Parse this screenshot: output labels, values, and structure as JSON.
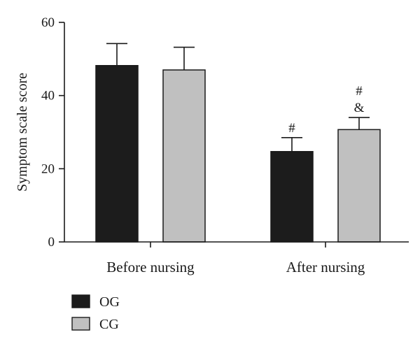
{
  "chart_data": {
    "type": "bar",
    "title": "",
    "xlabel": "",
    "ylabel": "Symptom scale score",
    "ylim": [
      0,
      60
    ],
    "yticks": [
      0,
      20,
      40,
      60
    ],
    "categories": [
      "Before nursing",
      "After nursing"
    ],
    "series": [
      {
        "name": "OG",
        "color": "#1c1c1c",
        "values": [
          48.2,
          24.7
        ],
        "errors": [
          6.0,
          3.8
        ]
      },
      {
        "name": "CG",
        "color": "#c0c0c0",
        "values": [
          47.0,
          30.7
        ],
        "errors": [
          6.2,
          3.3
        ]
      }
    ],
    "annotations": [
      {
        "series": 0,
        "category": 1,
        "lines": [
          "#"
        ]
      },
      {
        "series": 1,
        "category": 1,
        "lines": [
          "#",
          "&"
        ]
      }
    ],
    "legend": "bottom-left",
    "grid": false
  }
}
